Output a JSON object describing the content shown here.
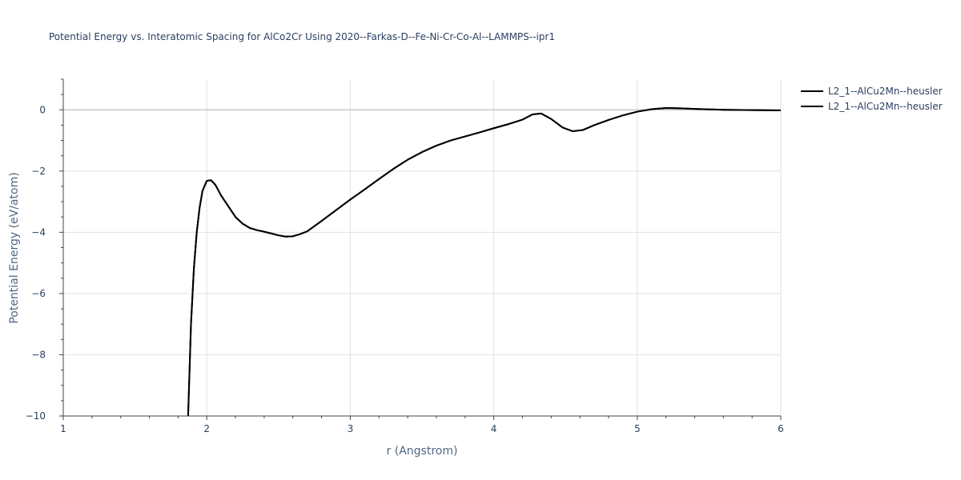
{
  "chart_data": {
    "type": "line",
    "title": "Potential Energy vs. Interatomic Spacing for AlCo2Cr Using 2020--Farkas-D--Fe-Ni-Cr-Co-Al--LAMMPS--ipr1",
    "xlabel": "r (Angstrom)",
    "ylabel": "Potential Energy (eV/atom)",
    "xlim": [
      1,
      6
    ],
    "ylim": [
      -10,
      1
    ],
    "xticks": [
      1,
      2,
      3,
      4,
      5,
      6
    ],
    "xtick_labels": [
      "1",
      "2",
      "3",
      "4",
      "5",
      "6"
    ],
    "yticks": [
      0,
      -2,
      -4,
      -6,
      -8,
      -10
    ],
    "ytick_labels": [
      "0",
      "−2",
      "−4",
      "−6",
      "−8",
      "−10"
    ],
    "grid": true,
    "legend_position": "top-right",
    "series": [
      {
        "name": "L2_1--AlCu2Mn--heusler",
        "color": "#000000",
        "x": [
          1.87,
          1.89,
          1.91,
          1.93,
          1.95,
          1.97,
          2.0,
          2.03,
          2.06,
          2.1,
          2.15,
          2.2,
          2.25,
          2.3,
          2.35,
          2.4,
          2.45,
          2.5,
          2.55,
          2.6,
          2.65,
          2.7,
          2.8,
          2.9,
          3.0,
          3.1,
          3.2,
          3.3,
          3.4,
          3.5,
          3.6,
          3.7,
          3.8,
          3.9,
          4.0,
          4.1,
          4.2,
          4.27,
          4.33,
          4.4,
          4.48,
          4.55,
          4.62,
          4.7,
          4.8,
          4.9,
          5.0,
          5.1,
          5.2,
          5.3,
          5.4,
          5.6,
          5.8,
          6.0
        ],
        "y": [
          -10.0,
          -7.0,
          -5.2,
          -4.0,
          -3.2,
          -2.65,
          -2.32,
          -2.3,
          -2.45,
          -2.8,
          -3.15,
          -3.5,
          -3.72,
          -3.86,
          -3.93,
          -3.98,
          -4.04,
          -4.1,
          -4.14,
          -4.13,
          -4.06,
          -3.97,
          -3.63,
          -3.28,
          -2.93,
          -2.6,
          -2.26,
          -1.93,
          -1.63,
          -1.38,
          -1.17,
          -1.0,
          -0.87,
          -0.74,
          -0.6,
          -0.47,
          -0.32,
          -0.15,
          -0.12,
          -0.3,
          -0.58,
          -0.7,
          -0.66,
          -0.5,
          -0.33,
          -0.18,
          -0.06,
          0.02,
          0.06,
          0.05,
          0.03,
          0.0,
          -0.01,
          -0.02
        ]
      },
      {
        "name": "L2_1--AlCu2Mn--heusler",
        "color": "#000000",
        "x": [
          1.87,
          1.89,
          1.91,
          1.93,
          1.95,
          1.97,
          2.0,
          2.03,
          2.06,
          2.1,
          2.15,
          2.2,
          2.25,
          2.3,
          2.35,
          2.4,
          2.45,
          2.5,
          2.55,
          2.6,
          2.65,
          2.7,
          2.8,
          2.9,
          3.0,
          3.1,
          3.2,
          3.3,
          3.4,
          3.5,
          3.6,
          3.7,
          3.8,
          3.9,
          4.0,
          4.1,
          4.2,
          4.27,
          4.33,
          4.4,
          4.48,
          4.55,
          4.62,
          4.7,
          4.8,
          4.9,
          5.0,
          5.1,
          5.2,
          5.3,
          5.4,
          5.6,
          5.8,
          6.0
        ],
        "y": [
          -10.0,
          -7.0,
          -5.2,
          -4.0,
          -3.2,
          -2.65,
          -2.32,
          -2.3,
          -2.45,
          -2.8,
          -3.15,
          -3.5,
          -3.72,
          -3.86,
          -3.93,
          -3.98,
          -4.04,
          -4.1,
          -4.14,
          -4.13,
          -4.06,
          -3.97,
          -3.63,
          -3.28,
          -2.93,
          -2.6,
          -2.26,
          -1.93,
          -1.63,
          -1.38,
          -1.17,
          -1.0,
          -0.87,
          -0.74,
          -0.6,
          -0.47,
          -0.32,
          -0.15,
          -0.12,
          -0.3,
          -0.58,
          -0.7,
          -0.66,
          -0.5,
          -0.33,
          -0.18,
          -0.06,
          0.02,
          0.06,
          0.05,
          0.03,
          0.0,
          -0.01,
          -0.02
        ]
      }
    ]
  }
}
